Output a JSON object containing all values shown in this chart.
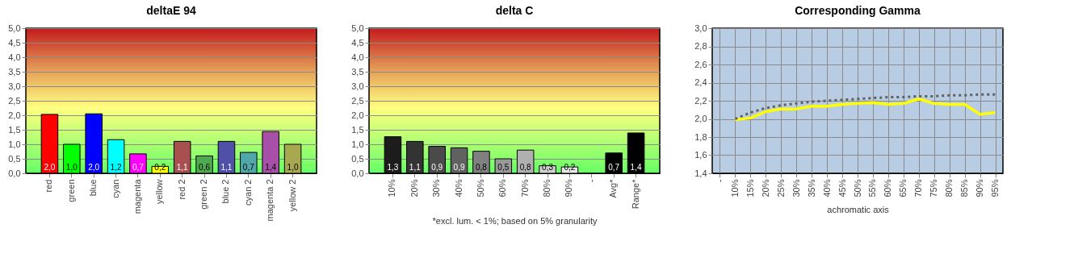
{
  "chart_data": [
    {
      "type": "bar",
      "title": "deltaE 94",
      "categories": [
        "red",
        "green",
        "blue",
        "cyan",
        "magenta",
        "yellow",
        "red 2",
        "green 2",
        "blue 2",
        "cyan 2",
        "magenta 2",
        "yellow 2"
      ],
      "values": [
        2.03,
        1.0,
        2.05,
        1.16,
        0.67,
        0.24,
        1.1,
        0.6,
        1.1,
        0.72,
        1.44,
        1.0
      ],
      "colors": [
        "#ff0000",
        "#00ff00",
        "#0000ff",
        "#00ffff",
        "#ff00ff",
        "#ffff00",
        "#a85050",
        "#50a850",
        "#5050a8",
        "#50a8a8",
        "#a850a8",
        "#a8a850"
      ],
      "value_labels": [
        "2,0",
        "1,0",
        "2,0",
        "1,2",
        "0,7",
        "0,2",
        "1,1",
        "0,6",
        "1,1",
        "0,7",
        "1,4",
        "1,0"
      ],
      "ylim": [
        0,
        5
      ],
      "yticks": [
        {
          "value": 0,
          "label": "0,0"
        },
        {
          "value": 0.5,
          "label": "0,5"
        },
        {
          "value": 1,
          "label": "1,0"
        },
        {
          "value": 1.5,
          "label": "1,5"
        },
        {
          "value": 2,
          "label": "2,0"
        },
        {
          "value": 2.5,
          "label": "2,5"
        },
        {
          "value": 3,
          "label": "3,0"
        },
        {
          "value": 3.5,
          "label": "3,5"
        },
        {
          "value": 4,
          "label": "4,0"
        },
        {
          "value": 4.5,
          "label": "4,5"
        },
        {
          "value": 5,
          "label": "5,0"
        }
      ],
      "grid": "y"
    },
    {
      "type": "bar",
      "title": "delta C",
      "categories": [
        "10%",
        "20%",
        "30%",
        "40%",
        "50%",
        "60%",
        "70%",
        "80%",
        "90%",
        "-",
        "Avg*",
        "Range*"
      ],
      "values": [
        1.26,
        1.1,
        0.93,
        0.88,
        0.76,
        0.5,
        0.8,
        0.26,
        0.22,
        null,
        0.7,
        1.39
      ],
      "colors": [
        "#1c1c1c",
        "#333333",
        "#4a4a4a",
        "#616161",
        "#808080",
        "#999999",
        "#b0b0b0",
        "#d0d0d0",
        "#e6e6e6",
        "#ffffff",
        "#000000",
        "#000000"
      ],
      "value_labels": [
        "1,3",
        "1,1",
        "0,9",
        "0,9",
        "0,8",
        "0,5",
        "0,8",
        "0,3",
        "0,2",
        null,
        "0,7",
        "1,4"
      ],
      "ylim": [
        0,
        5
      ],
      "yticks": [
        {
          "value": 0,
          "label": "0,0"
        },
        {
          "value": 0.5,
          "label": "0,5"
        },
        {
          "value": 1,
          "label": "1,0"
        },
        {
          "value": 1.5,
          "label": "1,5"
        },
        {
          "value": 2,
          "label": "2,0"
        },
        {
          "value": 2.5,
          "label": "2,5"
        },
        {
          "value": 3,
          "label": "3,0"
        },
        {
          "value": 3.5,
          "label": "3,5"
        },
        {
          "value": 4,
          "label": "4,0"
        },
        {
          "value": 4.5,
          "label": "4,5"
        },
        {
          "value": 5,
          "label": "5,0"
        }
      ],
      "grid": "y",
      "annotations": [
        "*excl. lum. < 1%; based on 5% granularity"
      ]
    },
    {
      "type": "line",
      "title": "Corresponding Gamma",
      "xlabel": "achromatic axis",
      "categories": [
        "-",
        "10%",
        "15%",
        "20%",
        "25%",
        "30%",
        "35%",
        "40%",
        "45%",
        "50%",
        "55%",
        "60%",
        "65%",
        "70%",
        "75%",
        "80%",
        "85%",
        "90%",
        "95%"
      ],
      "series": [
        {
          "color": "#ffff00",
          "line_style": "solid",
          "values": [
            null,
            1.99,
            2.01,
            2.08,
            2.11,
            2.11,
            2.14,
            2.14,
            2.16,
            2.17,
            2.18,
            2.16,
            2.17,
            2.22,
            2.17,
            2.16,
            2.16,
            2.05,
            2.07
          ]
        },
        {
          "color": "#606060",
          "line_style": "dotted",
          "values": [
            null,
            2.0,
            2.07,
            2.12,
            2.15,
            2.17,
            2.19,
            2.2,
            2.21,
            2.22,
            2.23,
            2.24,
            2.24,
            2.25,
            2.25,
            2.26,
            2.26,
            2.27,
            2.27
          ]
        }
      ],
      "ylim": [
        1.4,
        3.0
      ],
      "yticks": [
        {
          "value": 1.4,
          "label": "1,4"
        },
        {
          "value": 1.6,
          "label": "1,6"
        },
        {
          "value": 1.8,
          "label": "1,8"
        },
        {
          "value": 2.0,
          "label": "2,0"
        },
        {
          "value": 2.2,
          "label": "2,2"
        },
        {
          "value": 2.4,
          "label": "2,4"
        },
        {
          "value": 2.6,
          "label": "2,6"
        },
        {
          "value": 2.8,
          "label": "2,8"
        },
        {
          "value": 3.0,
          "label": "3,0"
        }
      ],
      "grid": true
    }
  ]
}
